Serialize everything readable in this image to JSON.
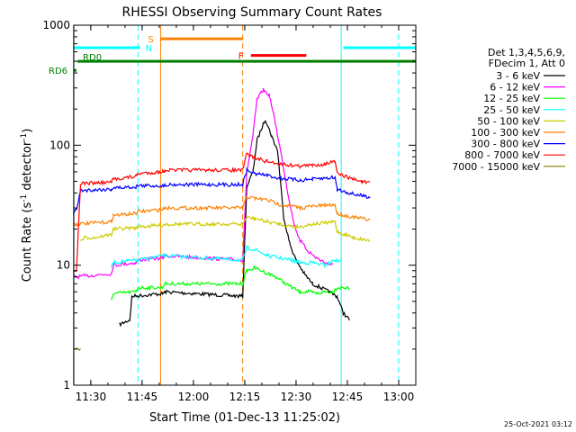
{
  "chart_data": {
    "type": "line",
    "title": "RHESSI Observing Summary Count Rates",
    "xlabel": "Start Time (01-Dec-13 11:25:02)",
    "ylabel_main": "Count Rate (s",
    "ylabel_sup1": "-1",
    "ylabel_mid": " detector",
    "ylabel_sup2": "-1",
    "ylabel_end": ")",
    "y_scale": "log",
    "ylim": [
      1,
      1000
    ],
    "xlim": [
      11.4172,
      13.0833
    ],
    "x_ticks": [
      {
        "v": 11.5,
        "label": "11:30"
      },
      {
        "v": 11.75,
        "label": "11:45"
      },
      {
        "v": 12.0,
        "label": "12:00"
      },
      {
        "v": 12.25,
        "label": "12:15"
      },
      {
        "v": 12.5,
        "label": "12:30"
      },
      {
        "v": 12.75,
        "label": "12:45"
      },
      {
        "v": 13.0,
        "label": "13:00"
      }
    ],
    "y_ticks": [
      {
        "v": 1,
        "label": "1"
      },
      {
        "v": 10,
        "label": "10"
      },
      {
        "v": 100,
        "label": "100"
      },
      {
        "v": 1000,
        "label": "1000"
      }
    ],
    "legend_header": [
      "Det 1,3,4,5,6,9,",
      "FDecim 1, Att 0"
    ],
    "legend_position": "right",
    "timestamp": "25-Oct-2021 03:12",
    "series": [
      {
        "name": "3 - 6 keV",
        "color": "#000000",
        "points": [
          [
            11.64,
            3.2
          ],
          [
            11.69,
            3.5
          ],
          [
            11.7,
            5.5
          ],
          [
            11.85,
            5.8
          ],
          [
            11.86,
            6.0
          ],
          [
            12.24,
            5.5
          ],
          [
            12.26,
            45
          ],
          [
            12.29,
            60
          ],
          [
            12.31,
            110
          ],
          [
            12.35,
            165
          ],
          [
            12.38,
            120
          ],
          [
            12.41,
            90
          ],
          [
            12.44,
            25
          ],
          [
            12.47,
            15
          ],
          [
            12.5,
            11
          ],
          [
            12.54,
            8.5
          ],
          [
            12.58,
            7.0
          ],
          [
            12.62,
            6.5
          ],
          [
            12.66,
            6.0
          ],
          [
            12.7,
            5.5
          ],
          [
            12.73,
            4.0
          ],
          [
            12.76,
            3.5
          ]
        ]
      },
      {
        "name": "6 - 12 keV",
        "color": "#ff00ff",
        "points": [
          [
            11.415,
            8.0
          ],
          [
            11.43,
            8.0
          ],
          [
            11.6,
            8.5
          ],
          [
            11.61,
            10
          ],
          [
            11.72,
            10.5
          ],
          [
            11.73,
            11
          ],
          [
            11.85,
            11.5
          ],
          [
            11.86,
            12
          ],
          [
            12.24,
            11
          ],
          [
            12.26,
            60
          ],
          [
            12.29,
            120
          ],
          [
            12.31,
            240
          ],
          [
            12.34,
            290
          ],
          [
            12.37,
            260
          ],
          [
            12.4,
            150
          ],
          [
            12.43,
            80
          ],
          [
            12.46,
            40
          ],
          [
            12.49,
            22
          ],
          [
            12.52,
            16
          ],
          [
            12.56,
            13
          ],
          [
            12.6,
            11.5
          ],
          [
            12.64,
            10.5
          ],
          [
            12.68,
            10
          ]
        ]
      },
      {
        "name": "12 - 25 keV",
        "color": "#00ff00",
        "points": [
          [
            11.6,
            5.0
          ],
          [
            11.61,
            5.8
          ],
          [
            11.72,
            6.0
          ],
          [
            11.73,
            6.5
          ],
          [
            11.85,
            6.5
          ],
          [
            11.86,
            7.0
          ],
          [
            12.24,
            7.0
          ],
          [
            12.26,
            9
          ],
          [
            12.3,
            9.5
          ],
          [
            12.4,
            8
          ],
          [
            12.48,
            6.5
          ],
          [
            12.52,
            6.0
          ],
          [
            12.56,
            6.0
          ],
          [
            12.6,
            5.8
          ],
          [
            12.64,
            6.0
          ],
          [
            12.68,
            6.0
          ],
          [
            12.7,
            6.5
          ],
          [
            12.74,
            6.5
          ],
          [
            12.76,
            6.3
          ]
        ]
      },
      {
        "name": "25 - 50 keV",
        "color": "#00ffff",
        "points": [
          [
            11.6,
            9.5
          ],
          [
            11.61,
            10.5
          ],
          [
            11.72,
            11
          ],
          [
            11.73,
            11
          ],
          [
            11.85,
            12
          ],
          [
            11.86,
            12
          ],
          [
            12.24,
            11
          ],
          [
            12.26,
            14
          ],
          [
            12.3,
            13.5
          ],
          [
            12.36,
            12
          ],
          [
            12.42,
            11.5
          ],
          [
            12.48,
            11
          ],
          [
            12.52,
            10.5
          ],
          [
            12.58,
            10.5
          ],
          [
            12.64,
            10
          ],
          [
            12.69,
            11
          ],
          [
            12.7,
            11
          ],
          [
            12.72,
            11
          ]
        ]
      },
      {
        "name": "50 - 100 keV",
        "color": "#cccc00",
        "points": [
          [
            11.45,
            16
          ],
          [
            11.47,
            17
          ],
          [
            11.52,
            17
          ],
          [
            11.6,
            18
          ],
          [
            11.61,
            20
          ],
          [
            11.72,
            20.5
          ],
          [
            11.73,
            21
          ],
          [
            11.85,
            21.5
          ],
          [
            11.86,
            22
          ],
          [
            12.24,
            22
          ],
          [
            12.26,
            25
          ],
          [
            12.3,
            24.5
          ],
          [
            12.36,
            23
          ],
          [
            12.42,
            22
          ],
          [
            12.48,
            21
          ],
          [
            12.52,
            21
          ],
          [
            12.58,
            22
          ],
          [
            12.64,
            22.5
          ],
          [
            12.69,
            23
          ],
          [
            12.7,
            19
          ],
          [
            12.74,
            18
          ],
          [
            12.78,
            17
          ],
          [
            12.82,
            16.5
          ],
          [
            12.86,
            16
          ]
        ]
      },
      {
        "name": "100 - 300 keV",
        "color": "#ff8000",
        "points": [
          [
            11.415,
            22
          ],
          [
            11.43,
            22
          ],
          [
            11.6,
            23
          ],
          [
            11.61,
            26
          ],
          [
            11.72,
            27
          ],
          [
            11.73,
            28
          ],
          [
            11.85,
            29
          ],
          [
            11.86,
            30
          ],
          [
            12.24,
            30
          ],
          [
            12.26,
            37
          ],
          [
            12.3,
            36
          ],
          [
            12.36,
            35
          ],
          [
            12.42,
            32
          ],
          [
            12.48,
            31
          ],
          [
            12.52,
            30
          ],
          [
            12.58,
            31
          ],
          [
            12.64,
            31.5
          ],
          [
            12.69,
            32
          ],
          [
            12.7,
            27
          ],
          [
            12.74,
            26
          ],
          [
            12.78,
            25
          ],
          [
            12.82,
            24.5
          ],
          [
            12.86,
            24
          ]
        ]
      },
      {
        "name": "300 - 800 keV",
        "color": "#0000ff",
        "points": [
          [
            11.415,
            27
          ],
          [
            11.43,
            29
          ],
          [
            11.45,
            42
          ],
          [
            11.6,
            43
          ],
          [
            11.61,
            44
          ],
          [
            11.72,
            45
          ],
          [
            11.73,
            46
          ],
          [
            11.85,
            46
          ],
          [
            11.86,
            47
          ],
          [
            12.24,
            47
          ],
          [
            12.26,
            62
          ],
          [
            12.3,
            58
          ],
          [
            12.36,
            56
          ],
          [
            12.42,
            53
          ],
          [
            12.48,
            52
          ],
          [
            12.52,
            51
          ],
          [
            12.58,
            52
          ],
          [
            12.64,
            53
          ],
          [
            12.69,
            54
          ],
          [
            12.7,
            43
          ],
          [
            12.74,
            41
          ],
          [
            12.78,
            39
          ],
          [
            12.82,
            38
          ],
          [
            12.86,
            37
          ]
        ]
      },
      {
        "name": "800 - 7000 keV",
        "color": "#ff0000",
        "points": [
          [
            11.415,
            9
          ],
          [
            11.43,
            9
          ],
          [
            11.45,
            48
          ],
          [
            11.6,
            49
          ],
          [
            11.61,
            52
          ],
          [
            11.72,
            55
          ],
          [
            11.73,
            58
          ],
          [
            11.85,
            60
          ],
          [
            11.86,
            62
          ],
          [
            12.24,
            62
          ],
          [
            12.26,
            85
          ],
          [
            12.3,
            78
          ],
          [
            12.36,
            73
          ],
          [
            12.42,
            70
          ],
          [
            12.48,
            68
          ],
          [
            12.52,
            67
          ],
          [
            12.58,
            68
          ],
          [
            12.64,
            70
          ],
          [
            12.69,
            73
          ],
          [
            12.7,
            58
          ],
          [
            12.74,
            55
          ],
          [
            12.78,
            52
          ],
          [
            12.82,
            50
          ],
          [
            12.86,
            48
          ]
        ]
      },
      {
        "name": "7000 - 15000 keV",
        "color": "#808000",
        "points": [
          [
            11.415,
            2.0
          ],
          [
            11.45,
            2.0
          ]
        ]
      }
    ],
    "state_bars": [
      {
        "label": "N",
        "color": "#00ffff",
        "segments": [
          [
            11.415,
            11.74
          ],
          [
            12.73,
            13.0833
          ]
        ],
        "value": 650
      },
      {
        "label": "S",
        "color": "#ff8000",
        "segments": [
          [
            11.84,
            12.24
          ]
        ],
        "value": 770
      },
      {
        "label": "F",
        "color": "#ff0000",
        "segments": [
          [
            12.28,
            12.55
          ]
        ],
        "value": 560
      },
      {
        "label": "RD0",
        "color": "#008000",
        "segments": [
          [
            11.435,
            13.0833
          ]
        ],
        "value": 500
      },
      {
        "label": "RD6",
        "color": "#008000",
        "segments": [
          [
            11.415,
            11.43
          ]
        ],
        "value": 420
      }
    ],
    "vertical_lines": [
      {
        "x": 11.415,
        "color": "#00ffff",
        "style": "solid"
      },
      {
        "x": 11.73,
        "color": "#00ffff",
        "style": "dashed"
      },
      {
        "x": 11.84,
        "color": "#ff8000",
        "style": "solid"
      },
      {
        "x": 12.24,
        "color": "#ff8000",
        "style": "dashed"
      },
      {
        "x": 12.72,
        "color": "#00ffff",
        "style": "solid"
      },
      {
        "x": 13.0,
        "color": "#00ffff",
        "style": "dashed"
      }
    ]
  }
}
